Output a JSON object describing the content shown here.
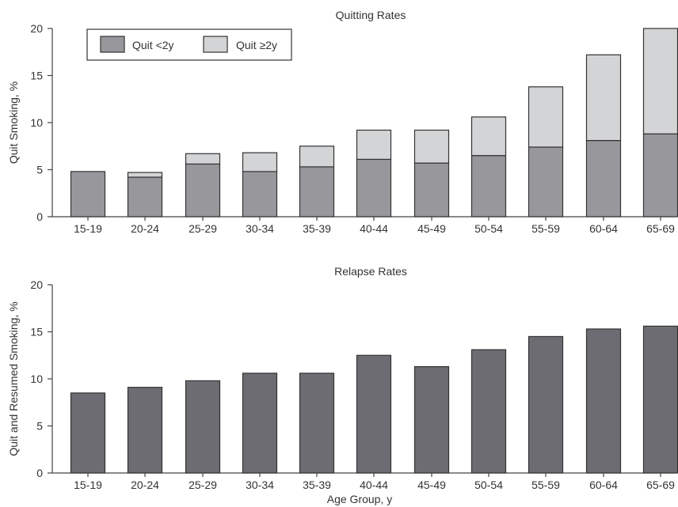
{
  "chart_data": [
    {
      "type": "bar",
      "stacked": true,
      "title": "Quitting Rates",
      "xlabel": "",
      "ylabel": "Quit Smoking, %",
      "ylim": [
        0,
        20
      ],
      "yticks": [
        0,
        5,
        10,
        15,
        20
      ],
      "categories": [
        "15-19",
        "20-24",
        "25-29",
        "30-34",
        "35-39",
        "40-44",
        "45-49",
        "50-54",
        "55-59",
        "60-64",
        "65-69"
      ],
      "series": [
        {
          "name": "Quit <2y",
          "color": "#98989c",
          "values": [
            4.8,
            4.2,
            5.6,
            4.8,
            5.3,
            6.1,
            5.7,
            6.5,
            7.4,
            8.1,
            8.8
          ]
        },
        {
          "name": "Quit ≥2y",
          "color": "#d3d4d6",
          "values": [
            0.0,
            0.5,
            1.1,
            2.0,
            2.2,
            3.1,
            3.5,
            4.1,
            6.4,
            9.1,
            11.2
          ]
        }
      ],
      "legend": "top-left"
    },
    {
      "type": "bar",
      "title": "Relapse Rates",
      "xlabel": "Age Group, y",
      "ylabel": "Quit and Resumed Smoking, %",
      "ylim": [
        0,
        20
      ],
      "yticks": [
        0,
        5,
        10,
        15,
        20
      ],
      "categories": [
        "15-19",
        "20-24",
        "25-29",
        "30-34",
        "35-39",
        "40-44",
        "45-49",
        "50-54",
        "55-59",
        "60-64",
        "65-69"
      ],
      "series": [
        {
          "color": "#6c6c72",
          "values": [
            8.5,
            9.1,
            9.8,
            10.6,
            10.6,
            12.5,
            11.3,
            13.1,
            14.5,
            15.3,
            15.6
          ]
        }
      ]
    }
  ]
}
